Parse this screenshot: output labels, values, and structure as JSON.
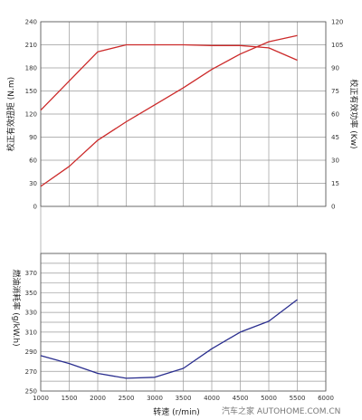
{
  "chart_data": [
    {
      "type": "line",
      "xlabel": "转速 (r/min)",
      "ylabel_left": "校正有效扭矩 (N.m)",
      "ylabel_right": "校正有效功率 (Kw)",
      "x_ticks": [
        1000,
        1500,
        2000,
        2500,
        3000,
        3500,
        4000,
        4500,
        5000,
        5500,
        6000
      ],
      "xlim": [
        1000,
        6000
      ],
      "ylim_left": [
        0,
        240
      ],
      "ylim_right": [
        0,
        120
      ],
      "yticks_left": [
        0,
        30,
        60,
        90,
        120,
        150,
        180,
        210,
        240
      ],
      "yticks_right": [
        0,
        15,
        30,
        45,
        60,
        75,
        90,
        105,
        120
      ],
      "grid": true,
      "series": [
        {
          "axis": "left",
          "color": "#cc2a2a",
          "x": [
            1000,
            1500,
            2000,
            2500,
            3000,
            3500,
            4000,
            4500,
            5000,
            5500
          ],
          "values": [
            125,
            163,
            201,
            210,
            210,
            210,
            209,
            209,
            206,
            190
          ]
        },
        {
          "axis": "right",
          "color": "#cc2a2a",
          "x": [
            1000,
            1500,
            2000,
            2500,
            3000,
            3500,
            4000,
            4500,
            5000,
            5500
          ],
          "values": [
            13,
            26,
            43,
            55,
            66,
            77,
            89,
            99,
            107,
            111
          ]
        }
      ]
    },
    {
      "type": "line",
      "xlabel": "转速 (r/min)",
      "ylabel": "燃油消耗率 (g/kW.h)",
      "xlim": [
        1000,
        6000
      ],
      "ylim": [
        250,
        390
      ],
      "yticks": [
        250,
        270,
        290,
        310,
        330,
        350,
        370
      ],
      "grid": true,
      "series": [
        {
          "color": "#2a2e8f",
          "x": [
            1000,
            1500,
            2000,
            2500,
            3000,
            3500,
            4000,
            4500,
            5000,
            5500
          ],
          "values": [
            286,
            278,
            268,
            263,
            264,
            273,
            293,
            310,
            321,
            343
          ]
        }
      ]
    }
  ],
  "watermark": "汽车之家 AUTOHOME.COM.CN"
}
